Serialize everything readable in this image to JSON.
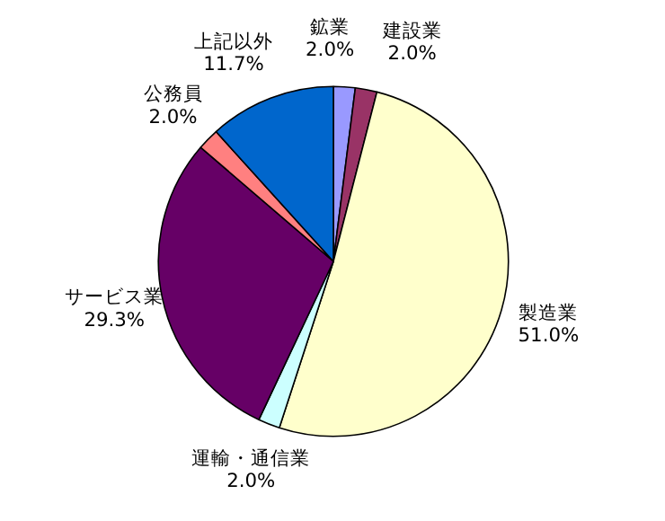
{
  "chart_data": {
    "type": "pie",
    "categories": [
      "鉱業",
      "建設業",
      "製造業",
      "運輸・通信業",
      "サービス業",
      "公務員",
      "上記以外"
    ],
    "values": [
      2.0,
      2.0,
      51.0,
      2.0,
      29.3,
      2.0,
      11.7
    ],
    "value_labels": [
      "2.0%",
      "2.0%",
      "51.0%",
      "2.0%",
      "29.3%",
      "2.0%",
      "11.7%"
    ],
    "colors": [
      "#9999ff",
      "#993366",
      "#ffffcc",
      "#ccffff",
      "#660066",
      "#ff8080",
      "#0066cc"
    ]
  }
}
